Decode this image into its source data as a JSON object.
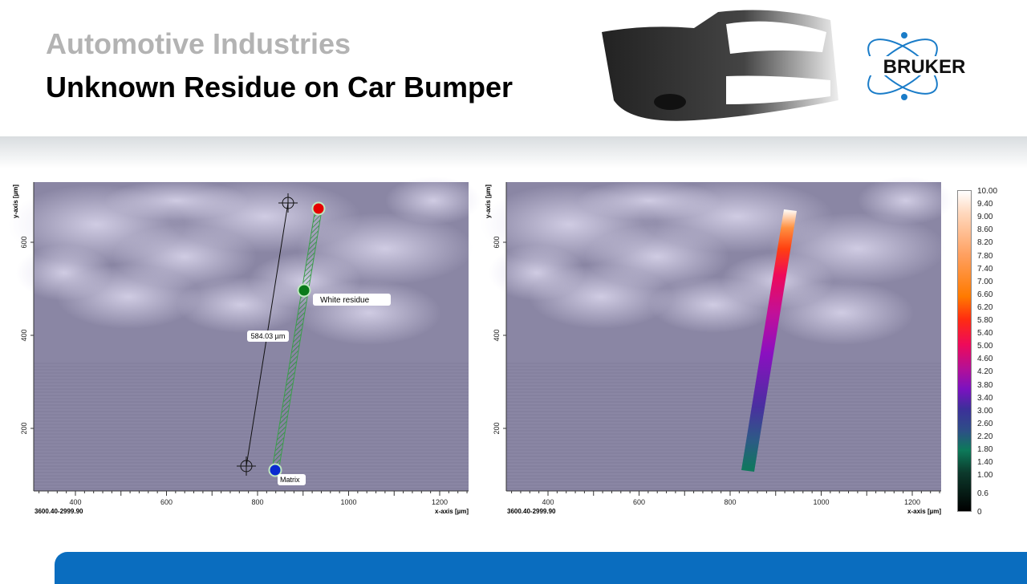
{
  "header": {
    "subtitle": "Automotive Industries",
    "title": "Unknown Residue on Car Bumper",
    "logo_text": "BRUKER"
  },
  "plots": [
    {
      "ylabel": "y-axis [µm]",
      "xlabel": "x-axis [µm]",
      "coords": "3600.40-2999.90",
      "xticks": [
        "400",
        "600",
        "800",
        "1000",
        "1200"
      ],
      "yticks": [
        "600",
        "400",
        "200"
      ],
      "measurement": "584.03 µm",
      "labels": {
        "green": "White residue",
        "blue": "Matrix"
      },
      "marker_colors": {
        "start": "#e60000",
        "mid": "#0a7a1a",
        "end": "#0a2ad0"
      }
    },
    {
      "ylabel": "y-axis [µm]",
      "xlabel": "x-axis [µm]",
      "coords": "3600.40-2999.90",
      "xticks": [
        "400",
        "600",
        "800",
        "1000",
        "1200"
      ],
      "yticks": [
        "600",
        "400",
        "200"
      ]
    }
  ],
  "colorbar": {
    "labels": [
      "10.00",
      "9.40",
      "9.00",
      "8.60",
      "8.20",
      "7.80",
      "7.40",
      "7.00",
      "6.60",
      "6.20",
      "5.80",
      "5.40",
      "5.00",
      "4.60",
      "4.20",
      "3.80",
      "3.40",
      "3.00",
      "2.60",
      "2.20",
      "1.80",
      "1.40",
      "1.00",
      "0.6",
      "0"
    ]
  },
  "colors": {
    "accent": "#0a6dbf",
    "title": "#000000",
    "subtitle": "#b3b3b3"
  }
}
